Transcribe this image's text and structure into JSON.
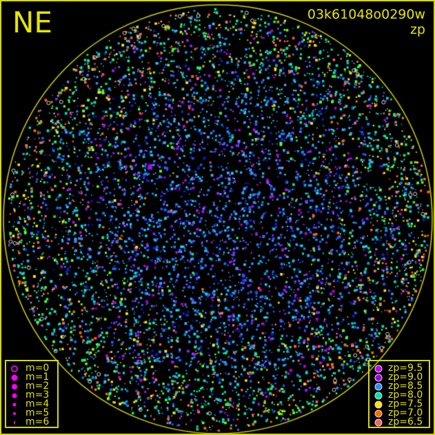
{
  "title": "NE",
  "image_id": "03k61048o0290w",
  "quantity": "zp",
  "colors": {
    "frame": "#d8d800",
    "text": "#e6e600",
    "background": "#000000"
  },
  "chart_data": {
    "type": "scatter",
    "title": "NE",
    "subtitle": "03k61048o0290w zp",
    "color_by": "zp",
    "size_by": "m",
    "size_legend": [
      {
        "label": "m=0",
        "style": "open"
      },
      {
        "label": "m=1"
      },
      {
        "label": "m=2"
      },
      {
        "label": "m=3"
      },
      {
        "label": "m=4"
      },
      {
        "label": "m=5"
      },
      {
        "label": "m=6"
      }
    ],
    "color_legend": [
      {
        "label": "zp=9.5",
        "color": "#c800f0"
      },
      {
        "label": "zp=9.0",
        "color": "#a000e0"
      },
      {
        "label": "zp=8.5",
        "color": "#2a8cff"
      },
      {
        "label": "zp=8.0",
        "color": "#00e8a0"
      },
      {
        "label": "zp=7.5",
        "color": "#ffe000"
      },
      {
        "label": "zp=7.0",
        "color": "#ff6a00"
      },
      {
        "label": "zp=6.5",
        "color": "#ff6464"
      }
    ]
  }
}
